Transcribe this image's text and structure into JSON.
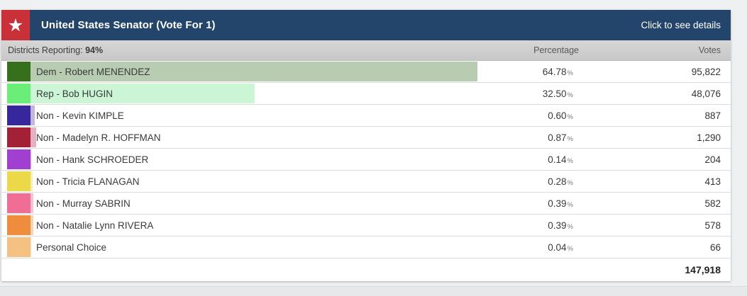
{
  "header": {
    "title": "United States Senator (Vote For 1)",
    "details_link": "Click to see details",
    "star_icon": "★",
    "accent_red": "#c93038",
    "accent_blue": "#24456b"
  },
  "subheader": {
    "districts_label": "Districts Reporting: ",
    "districts_value": "94%",
    "percentage_col": "Percentage",
    "votes_col": "Votes"
  },
  "labels": {
    "percent_suffix": "%"
  },
  "results": {
    "rows": [
      {
        "label": "Dem - Robert MENENDEZ",
        "percent": "64.78",
        "votes": "95,822",
        "swatch": "#36701d",
        "bar": "#b8ccb2"
      },
      {
        "label": "Rep - Bob HUGIN",
        "percent": "32.50",
        "votes": "48,076",
        "swatch": "#6bee78",
        "bar": "#cbf5d5"
      },
      {
        "label": "Non - Kevin KIMPLE",
        "percent": "0.60",
        "votes": "887",
        "swatch": "#36289c",
        "bar": "#c3b5de"
      },
      {
        "label": "Non - Madelyn R. HOFFMAN",
        "percent": "0.87",
        "votes": "1,290",
        "swatch": "#a22136",
        "bar": "#e5b0bf"
      },
      {
        "label": "Non - Hank SCHROEDER",
        "percent": "0.14",
        "votes": "204",
        "swatch": "#a13fd1",
        "bar": "#ddb7ef"
      },
      {
        "label": "Non - Tricia FLANAGAN",
        "percent": "0.28",
        "votes": "413",
        "swatch": "#ecd94a",
        "bar": "#f6efb2"
      },
      {
        "label": "Non - Murray SABRIN",
        "percent": "0.39",
        "votes": "582",
        "swatch": "#f06e96",
        "bar": "#f9c2d4"
      },
      {
        "label": "Non - Natalie Lynn RIVERA",
        "percent": "0.39",
        "votes": "578",
        "swatch": "#f08c3e",
        "bar": "#f9d2ae"
      },
      {
        "label": "Personal Choice",
        "percent": "0.04",
        "votes": "66",
        "swatch": "#f5c183",
        "bar": "#fbe6cc"
      }
    ],
    "total_votes": "147,918"
  }
}
